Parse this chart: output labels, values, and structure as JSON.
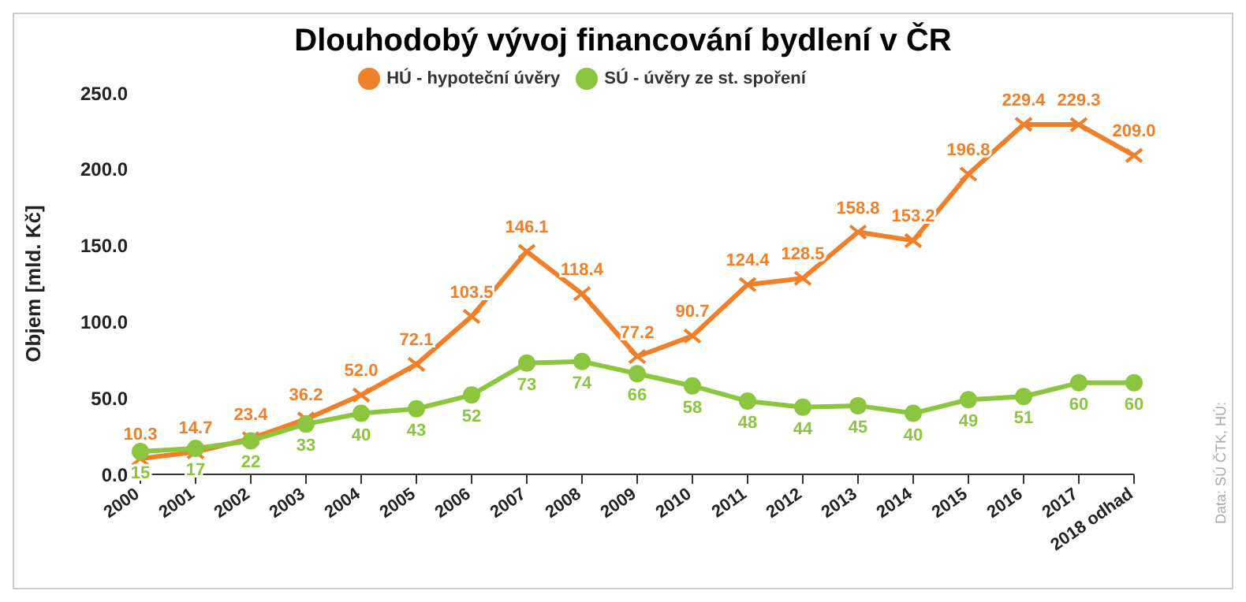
{
  "chart_data": {
    "type": "line",
    "title": "Dlouhodobý vývoj financování bydlení v ČR",
    "ylabel": "Objem [mld. Kč]",
    "categories": [
      "2000",
      "2001",
      "2002",
      "2003",
      "2004",
      "2005",
      "2006",
      "2007",
      "2008",
      "2009",
      "2010",
      "2011",
      "2012",
      "2013",
      "2014",
      "2015",
      "2016",
      "2017",
      "2018 odhad"
    ],
    "series": [
      {
        "name": "HÚ - hypoteční úvěry",
        "color": "#f07f2a",
        "marker": "cross",
        "values": [
          10.3,
          14.7,
          23.4,
          36.2,
          52.0,
          72.1,
          103.5,
          146.1,
          118.4,
          77.2,
          90.7,
          124.4,
          128.5,
          158.8,
          153.2,
          196.8,
          229.4,
          229.3,
          209.0
        ],
        "value_labels": [
          "10.3",
          "14.7",
          "23.4",
          "36.2",
          "52.0",
          "72.1",
          "103.5",
          "146.1",
          "118.4",
          "77.2",
          "90.7",
          "124.4",
          "128.5",
          "158.8",
          "153.2",
          "196.8",
          "229.4",
          "229.3",
          "209.0"
        ]
      },
      {
        "name": "SÚ - úvěry ze st. spoření",
        "color": "#8cc63f",
        "marker": "circle",
        "values": [
          15,
          17,
          22,
          33,
          40,
          43,
          52,
          73,
          74,
          66,
          58,
          48,
          44,
          45,
          40,
          49,
          51,
          60,
          60
        ],
        "value_labels": [
          "15",
          "17",
          "22",
          "33",
          "40",
          "43",
          "52",
          "73",
          "74",
          "66",
          "58",
          "48",
          "44",
          "45",
          "40",
          "49",
          "51",
          "60",
          "60"
        ]
      }
    ],
    "ylim": [
      0,
      250
    ],
    "yticks": [
      {
        "value": 0,
        "label": "0.0"
      },
      {
        "value": 50,
        "label": "50.0"
      },
      {
        "value": 100,
        "label": "100.0"
      },
      {
        "value": 150,
        "label": "150.0"
      },
      {
        "value": 200,
        "label": "200.0"
      },
      {
        "value": 250,
        "label": "250.0"
      }
    ],
    "grid": false,
    "legend": "top",
    "line_style": "solid",
    "annotations": [
      "Data: SÚ ČTK, HÚ:"
    ]
  }
}
